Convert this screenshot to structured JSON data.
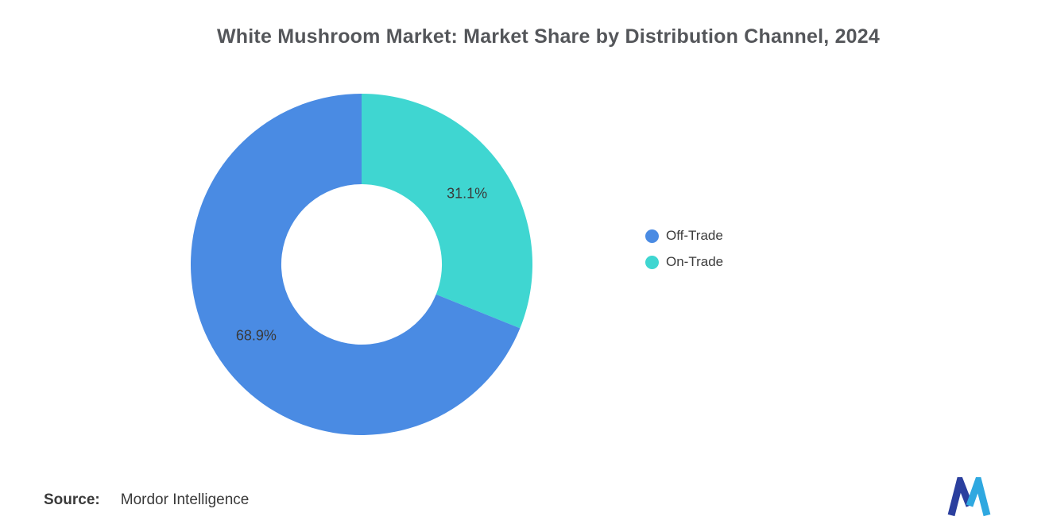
{
  "title": "White Mushroom Market: Market Share by Distribution Channel, 2024",
  "legend": {
    "items": [
      {
        "label": "Off-Trade",
        "color": "#4A8BE3"
      },
      {
        "label": "On-Trade",
        "color": "#3FD6D1"
      }
    ]
  },
  "source": {
    "label": "Source:",
    "value": "Mordor Intelligence"
  },
  "logo": {
    "name": "mordor-intelligence-logo",
    "dark_color": "#2B3F9E",
    "light_color": "#2FA8E0"
  },
  "chart_data": {
    "type": "pie",
    "donut": true,
    "title": "White Mushroom Market: Market Share by Distribution Channel, 2024",
    "start_angle_deg": 0,
    "direction": "clockwise",
    "inner_radius_ratio": 0.47,
    "legend_position": "right",
    "categories": [
      "Off-Trade",
      "On-Trade"
    ],
    "values": [
      68.9,
      31.1
    ],
    "slices_in_draw_order": [
      {
        "name": "On-Trade",
        "value": 31.1,
        "label": "31.1%",
        "color": "#3FD6D1"
      },
      {
        "name": "Off-Trade",
        "value": 68.9,
        "label": "68.9%",
        "color": "#4A8BE3"
      }
    ]
  }
}
